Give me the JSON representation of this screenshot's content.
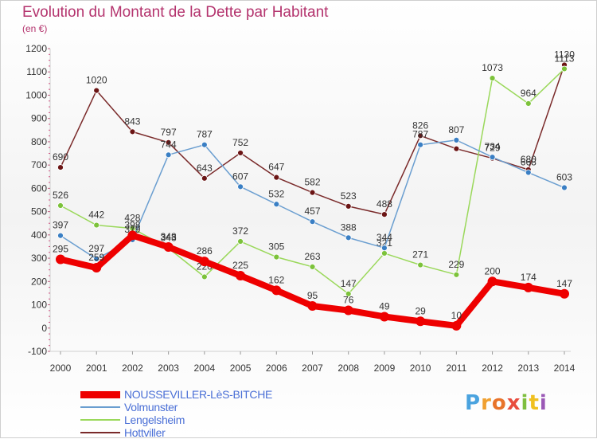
{
  "title": "Evolution du Montant de la Dette par Habitant",
  "subtitle": "(en €)",
  "logo": {
    "text": "Proxiti",
    "colors": [
      "#4aa3df",
      "#f0a030",
      "#e8732a",
      "#e84c3d",
      "#7fbf3f",
      "#f0c020",
      "#9b59b6"
    ]
  },
  "chart_data": {
    "type": "line",
    "x": [
      "2000",
      "2001",
      "2002",
      "2003",
      "2004",
      "2005",
      "2006",
      "2007",
      "2008",
      "2009",
      "2010",
      "2011",
      "2012",
      "2013",
      "2014"
    ],
    "ylim": [
      -100,
      1200
    ],
    "yticks": [
      -100,
      0,
      100,
      200,
      300,
      400,
      500,
      600,
      700,
      800,
      900,
      1000,
      1100,
      1200
    ],
    "grid": false,
    "legend": "bottom-left",
    "series": [
      {
        "name": "Hottviller",
        "color": "#7a2a2a",
        "marker": "#6b1515",
        "width": 1.5,
        "values": [
          690,
          1020,
          843,
          797,
          643,
          752,
          647,
          582,
          523,
          488,
          826,
          770,
          729,
          680,
          1130
        ],
        "labels": [
          "690",
          "1020",
          "843",
          "797",
          "643",
          "752",
          "647",
          "582",
          "523",
          "488",
          "826",
          "",
          "729",
          "680",
          "1130"
        ]
      },
      {
        "name": "Lengelsheim",
        "color": "#9ad85a",
        "marker": "#7cc23a",
        "width": 1.5,
        "values": [
          526,
          442,
          428,
          343,
          220,
          372,
          305,
          263,
          147,
          321,
          271,
          229,
          1073,
          964,
          1113
        ],
        "labels": [
          "526",
          "442",
          "428",
          "343",
          "220",
          "372",
          "305",
          "263",
          "147",
          "321",
          "271",
          "229",
          "1073",
          "964",
          "1113"
        ]
      },
      {
        "name": "Volmunster",
        "color": "#6a9ed0",
        "marker": "#3a7fc4",
        "width": 1.5,
        "values": [
          397,
          297,
          379,
          744,
          787,
          607,
          532,
          457,
          388,
          344,
          787,
          807,
          734,
          668,
          603
        ],
        "labels": [
          "397",
          "297",
          "379",
          "744",
          "787",
          "607",
          "532",
          "457",
          "388",
          "344",
          "787",
          "807",
          "734",
          "668",
          "603"
        ]
      },
      {
        "name": "NOUSSEVILLER-LèS-BITCHE",
        "color": "#ee0000",
        "marker": "#ee0000",
        "width": 8,
        "values": [
          295,
          259,
          398,
          348,
          286,
          225,
          162,
          95,
          76,
          49,
          29,
          10,
          200,
          174,
          147
        ],
        "labels": [
          "295",
          "259",
          "398",
          "348",
          "286",
          "225",
          "162",
          "95",
          "76",
          "49",
          "29",
          "10",
          "200",
          "174",
          "147"
        ]
      }
    ]
  },
  "legend": {
    "items": [
      {
        "label": "NOUSSEVILLER-LèS-BITCHE",
        "color": "#ee0000",
        "thick": true
      },
      {
        "label": "Volmunster",
        "color": "#6a9ed0",
        "thick": false
      },
      {
        "label": "Lengelsheim",
        "color": "#9ad85a",
        "thick": false
      },
      {
        "label": "Hottviller",
        "color": "#7a2a2a",
        "thick": false
      }
    ]
  }
}
